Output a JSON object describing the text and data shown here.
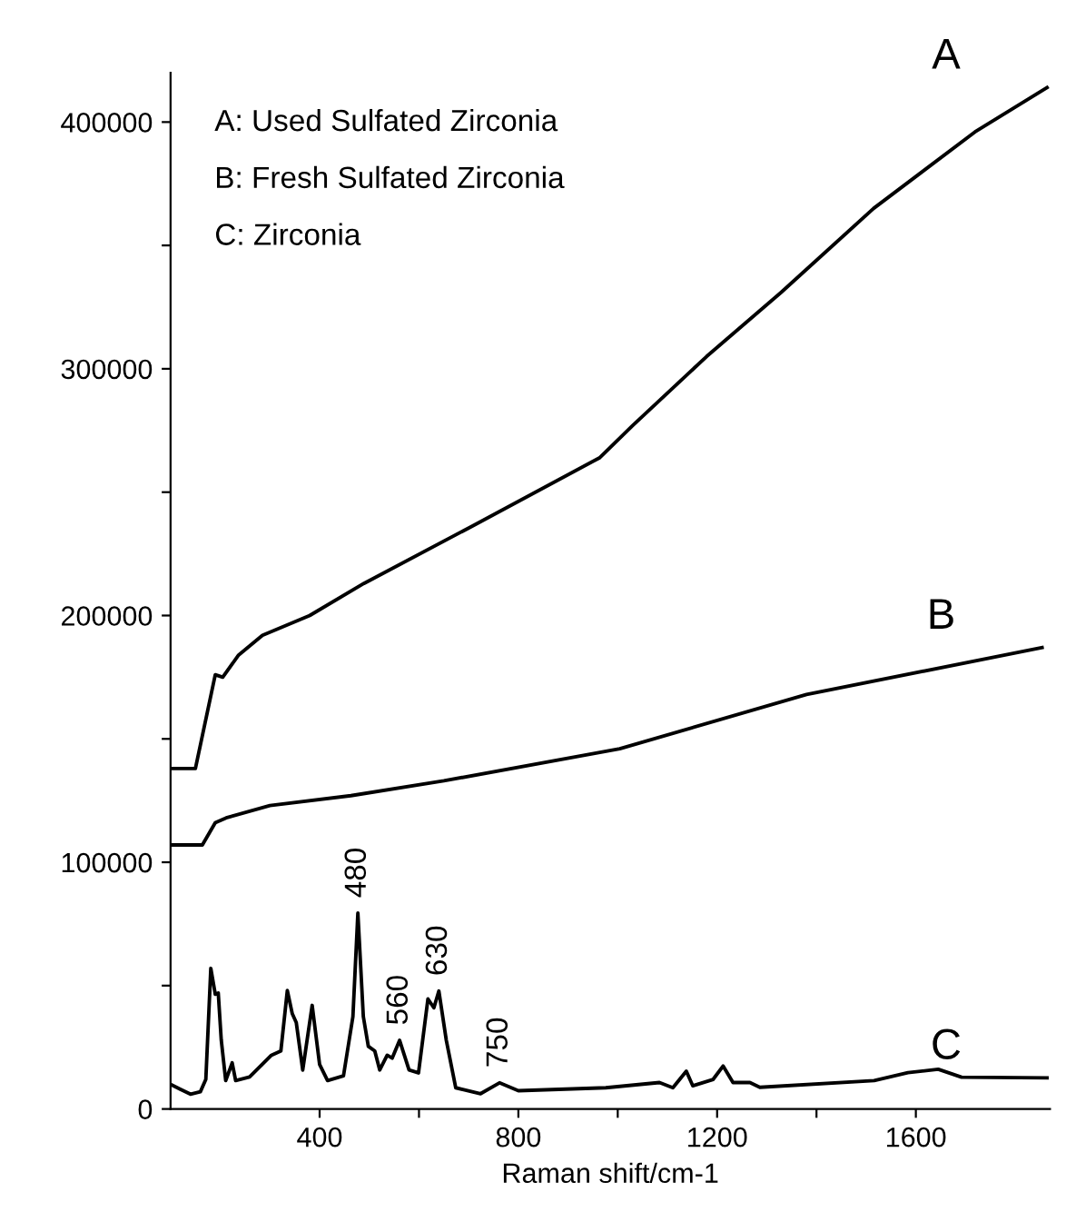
{
  "chart_data": {
    "type": "line",
    "xlabel": "Raman shift/cm-1",
    "xlim": [
      100,
      1870
    ],
    "ylim": [
      0,
      420000
    ],
    "xticks": [
      400,
      {
        "value": 600,
        "label": null
      },
      800,
      {
        "value": 1000,
        "label": null
      },
      1200,
      {
        "value": 1400,
        "label": null
      },
      1600
    ],
    "yticks": [
      0,
      {
        "value": 50000,
        "label": null
      },
      100000,
      {
        "value": 150000,
        "label": null
      },
      200000,
      {
        "value": 250000,
        "label": null
      },
      300000,
      {
        "value": 350000,
        "label": null
      },
      400000
    ],
    "grid": false,
    "legend": false,
    "marker": "none",
    "line_style": "solid",
    "series": [
      {
        "name": "A",
        "color": "#000000",
        "x": [
          100,
          150,
          190,
          205,
          237,
          285,
          380,
          489,
          705,
          964,
          1030,
          1179,
          1329,
          1515,
          1719,
          1864
        ],
        "values": [
          138000,
          138000,
          176000,
          175000,
          184000,
          192000,
          200000,
          213000,
          236000,
          264000,
          277000,
          305000,
          331000,
          365000,
          396000,
          414000
        ]
      },
      {
        "name": "B",
        "color": "#000000",
        "x": [
          100,
          164,
          190,
          212,
          300,
          463,
          650,
          1004,
          1380,
          1854
        ],
        "values": [
          107000,
          107000,
          116000,
          118000,
          123000,
          127000,
          133000,
          146000,
          168000,
          187000
        ]
      },
      {
        "name": "C",
        "color": "#000000",
        "x": [
          100,
          120,
          140,
          160,
          171,
          181,
          190,
          196,
          202,
          211,
          224,
          231,
          259,
          303,
          322,
          335,
          345,
          353,
          366,
          385,
          400,
          416,
          448,
          467,
          477,
          488,
          498,
          511,
          521,
          536,
          546,
          561,
          580,
          599,
          618,
          630,
          640,
          655,
          674,
          724,
          762,
          800,
          976,
          1084,
          1111,
          1138,
          1151,
          1192,
          1212,
          1232,
          1266,
          1286,
          1516,
          1584,
          1645,
          1692,
          1864
        ],
        "values": [
          10000,
          8000,
          6000,
          7000,
          12000,
          57000,
          46500,
          47000,
          28000,
          11500,
          18700,
          11500,
          13000,
          21800,
          23500,
          48000,
          38600,
          35000,
          15800,
          42000,
          18000,
          11500,
          13400,
          37400,
          79400,
          37400,
          25400,
          23500,
          15800,
          21800,
          20600,
          27800,
          15800,
          14600,
          44600,
          41000,
          47800,
          27800,
          8600,
          6200,
          10600,
          7400,
          8600,
          10700,
          8600,
          15300,
          9400,
          12000,
          17400,
          10700,
          10700,
          8800,
          11500,
          14700,
          16100,
          12900,
          12600
        ]
      }
    ],
    "annotations": [
      "A: Used Sulfated Zirconia",
      "B: Fresh Sulfated Zirconia",
      "C: Zirconia",
      {
        "text": "480",
        "x": 477,
        "y": 79400
      },
      {
        "text": "560",
        "x": 561,
        "y": 27800
      },
      {
        "text": "630",
        "x": 640,
        "y": 47800
      },
      {
        "text": "750",
        "x": 762,
        "y": 10600
      }
    ]
  }
}
